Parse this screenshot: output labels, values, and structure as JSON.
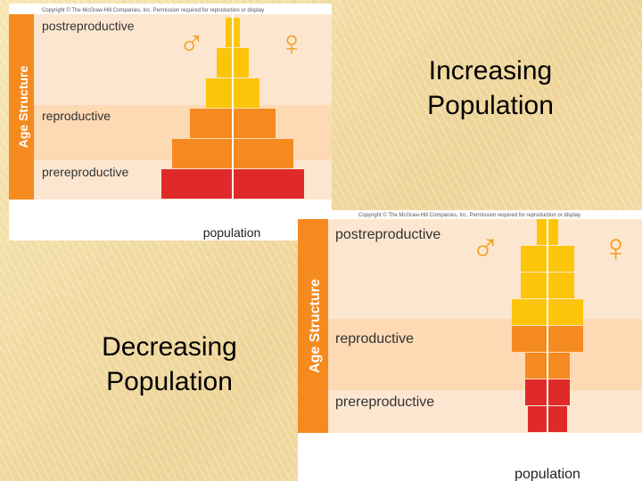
{
  "slide": {
    "increasing_title": "Increasing Population",
    "decreasing_title": "Decreasing Population"
  },
  "diagram_top": {
    "copyright": "Copyright © The McGraw-Hill Companies, Inc. Permission required for reproduction or display",
    "axis_label": "Age Structure",
    "x_label": "population",
    "male_symbol": "♂",
    "female_symbol": "♀",
    "groups": [
      "postreproductive",
      "reproductive",
      "prereproductive"
    ],
    "bar_halfwidths": [
      80,
      68,
      48,
      30,
      18,
      8
    ],
    "bar_colors": [
      "#e02a2a",
      "#f58a20",
      "#f58a20",
      "#fcc50a",
      "#fcc50a",
      "#fcc50a"
    ]
  },
  "diagram_bottom": {
    "copyright": "Copyright © The McGraw-Hill Companies, Inc. Permission required for reproduction or display",
    "axis_label": "Age Structure",
    "x_label": "population",
    "male_symbol": "♂",
    "female_symbol": "♀",
    "groups": [
      "postreproductive",
      "reproductive",
      "prereproductive"
    ],
    "bar_halfwidths": [
      22,
      25,
      25,
      40,
      40,
      30,
      30,
      12
    ],
    "bar_colors": [
      "#e02a2a",
      "#e02a2a",
      "#f58a20",
      "#f58a20",
      "#fcc50a",
      "#fcc50a",
      "#fcc50a",
      "#fcc50a"
    ],
    "colors": {
      "sidebar": "#f58a20",
      "text": "#ffffff"
    }
  }
}
